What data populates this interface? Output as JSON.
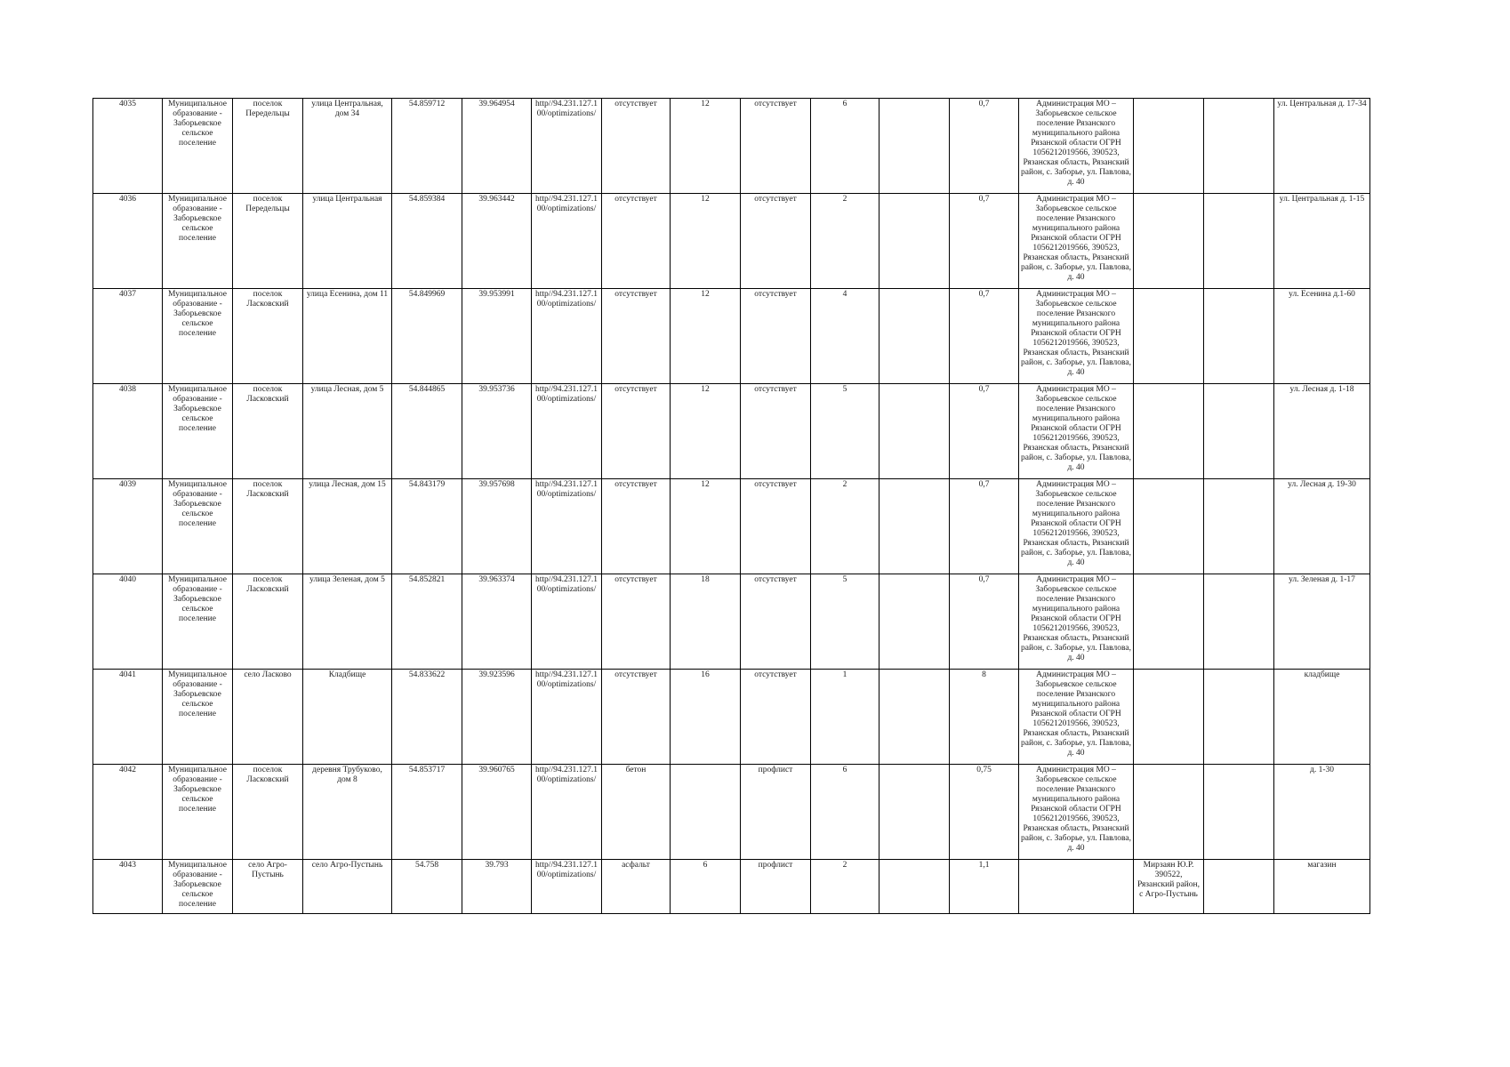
{
  "table": {
    "rows": [
      [
        "4035",
        "Муниципальное образование - Заборьевское сельское поселение",
        "поселок Передельцы",
        "улица Центральная, дом 34",
        "54.859712",
        "39.964954",
        "http//94.231.127.100/optimizations/",
        "отсутствует",
        "12",
        "отсутствует",
        "6",
        null,
        "0,7",
        "Администрация МО – Заборьевское сельское поселение Рязанского муниципального района Рязанской области ОГРН 1056212019566, 390523, Рязанская область, Рязанский район, с. Заборье, ул. Павлова, д. 40",
        null,
        null,
        "ул. Центральная д. 17-34"
      ],
      [
        "4036",
        "Муниципальное образование - Заборьевское сельское поселение",
        "поселок Передельцы",
        "улица Центральная",
        "54.859384",
        "39.963442",
        "http//94.231.127.100/optimizations/",
        "отсутствует",
        "12",
        "отсутствует",
        "2",
        null,
        "0,7",
        "Администрация МО – Заборьевское сельское поселение Рязанского муниципального района Рязанской области ОГРН 1056212019566, 390523, Рязанская область, Рязанский район, с. Заборье, ул. Павлова, д. 40",
        null,
        null,
        "ул. Центральная д. 1-15"
      ],
      [
        "4037",
        "Муниципальное образование - Заборьевское сельское поселение",
        "поселок Ласковский",
        "улица Есенина, дом 11",
        "54.849969",
        "39.953991",
        "http//94.231.127.100/optimizations/",
        "отсутствует",
        "12",
        "отсутствует",
        "4",
        null,
        "0,7",
        "Администрация МО – Заборьевское сельское поселение Рязанского муниципального района Рязанской области ОГРН 1056212019566, 390523, Рязанская область, Рязанский район, с. Заборье, ул. Павлова, д. 40",
        null,
        null,
        "ул. Есенина д.1-60"
      ],
      [
        "4038",
        "Муниципальное образование - Заборьевское сельское поселение",
        "поселок Ласковский",
        "улица Лесная, дом 5",
        "54.844865",
        "39.953736",
        "http//94.231.127.100/optimizations/",
        "отсутствует",
        "12",
        "отсутствует",
        "5",
        null,
        "0,7",
        "Администрация МО – Заборьевское сельское поселение Рязанского муниципального района Рязанской области ОГРН 1056212019566, 390523, Рязанская область, Рязанский район, с. Заборье, ул. Павлова, д. 40",
        null,
        null,
        "ул. Лесная д. 1-18"
      ],
      [
        "4039",
        "Муниципальное образование - Заборьевское сельское поселение",
        "поселок Ласковский",
        "улица Лесная, дом 15",
        "54.843179",
        "39.957698",
        "http//94.231.127.100/optimizations/",
        "отсутствует",
        "12",
        "отсутствует",
        "2",
        null,
        "0,7",
        "Администрация МО – Заборьевское сельское поселение Рязанского муниципального района Рязанской области ОГРН 1056212019566, 390523, Рязанская область, Рязанский район, с. Заборье, ул. Павлова, д. 40",
        null,
        null,
        "ул. Лесная д. 19-30"
      ],
      [
        "4040",
        "Муниципальное образование - Заборьевское сельское поселение",
        "поселок Ласковский",
        "улица Зеленая, дом 5",
        "54.852821",
        "39.963374",
        "http//94.231.127.100/optimizations/",
        "отсутствует",
        "18",
        "отсутствует",
        "5",
        null,
        "0,7",
        "Администрация МО – Заборьевское сельское поселение Рязанского муниципального района Рязанской области ОГРН 1056212019566, 390523, Рязанская область, Рязанский район, с. Заборье, ул. Павлова, д. 40",
        null,
        null,
        "ул. Зеленая д. 1-17"
      ],
      [
        "4041",
        "Муниципальное образование - Заборьевское сельское поселение",
        "село Ласково",
        "Кладбище",
        "54.833622",
        "39.923596",
        "http//94.231.127.100/optimizations/",
        "отсутствует",
        "16",
        "отсутствует",
        "1",
        null,
        "8",
        "Администрация МО – Заборьевское сельское поселение Рязанского муниципального района Рязанской области ОГРН 1056212019566, 390523, Рязанская область, Рязанский район, с. Заборье, ул. Павлова, д. 40",
        null,
        null,
        "кладбище"
      ],
      [
        "4042",
        "Муниципальное образование - Заборьевское сельское поселение",
        "поселок Ласковский",
        "деревня Трубуково, дом 8",
        "54.853717",
        "39.960765",
        "http//94.231.127.100/optimizations/",
        "бетон",
        null,
        "профлист",
        "6",
        null,
        "0,75",
        "Администрация МО – Заборьевское сельское поселение Рязанского муниципального района Рязанской области ОГРН 1056212019566, 390523, Рязанская область, Рязанский район, с. Заборье, ул. Павлова, д. 40",
        null,
        null,
        "д. 1-30"
      ],
      [
        "4043",
        "Муниципальное образование - Заборьевское сельское поселение",
        "село Агро-Пустынь",
        "село Агро-Пустынь",
        "54.758",
        "39.793",
        "http//94.231.127.100/optimizations/",
        "асфальт",
        "6",
        "профлист",
        "2",
        null,
        "1,1",
        null,
        "Мирзаян Ю.Р. 390522, Рязанский район, с Агро-Пустынь",
        null,
        "магазин"
      ]
    ]
  }
}
